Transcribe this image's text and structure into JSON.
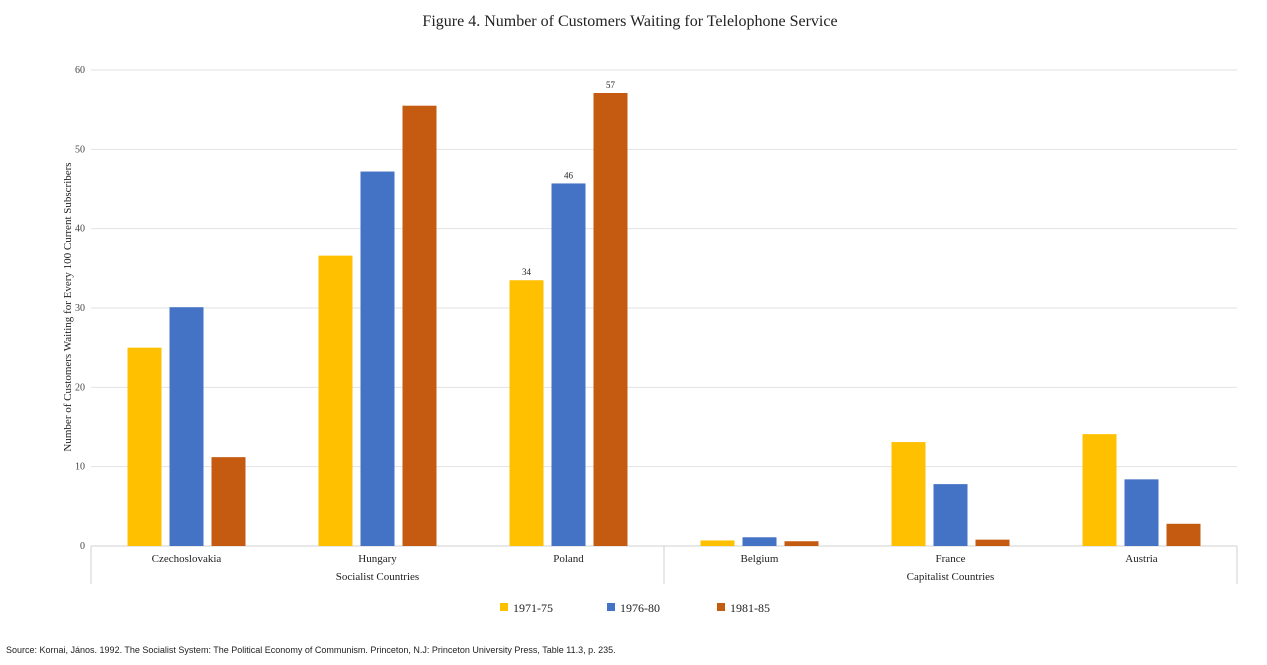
{
  "chart_data": {
    "type": "bar",
    "title": "Figure 4. Number of Customers Waiting for Telelophone Service",
    "ylabel": "Number of Customers Waiting for Every 100 Current Subscribers",
    "xlabel": "",
    "ylim": [
      0,
      60
    ],
    "yticks": [
      0,
      10,
      20,
      30,
      40,
      50,
      60
    ],
    "grid": true,
    "legend_position": "bottom",
    "categories": [
      "Czechoslovakia",
      "Hungary",
      "Poland",
      "Belgium",
      "France",
      "Austria"
    ],
    "groups": [
      {
        "label": "Socialist Countries",
        "categories": [
          "Czechoslovakia",
          "Hungary",
          "Poland"
        ]
      },
      {
        "label": "Capitalist Countries",
        "categories": [
          "Belgium",
          "France",
          "Austria"
        ]
      }
    ],
    "series": [
      {
        "name": "1971-75",
        "color": "#FFC000",
        "values": [
          25,
          36.6,
          33.5,
          0.7,
          13.1,
          14.1
        ],
        "labels": [
          "",
          "",
          "34",
          "",
          "",
          ""
        ]
      },
      {
        "name": "1976-80",
        "color": "#4472C4",
        "values": [
          30.1,
          47.2,
          45.7,
          1.1,
          7.8,
          8.4
        ],
        "labels": [
          "",
          "",
          "46",
          "",
          "",
          ""
        ]
      },
      {
        "name": "1981-85",
        "color": "#C55A11",
        "values": [
          11.2,
          55.5,
          57.1,
          0.6,
          0.8,
          2.8
        ],
        "labels": [
          "",
          "",
          "57",
          "",
          "",
          ""
        ]
      }
    ]
  },
  "source": "Source: Kornai, János. 1992. The Socialist System: The Political Economy of Communism. Princeton, N.J: Princeton University Press, Table 11.3, p. 235."
}
